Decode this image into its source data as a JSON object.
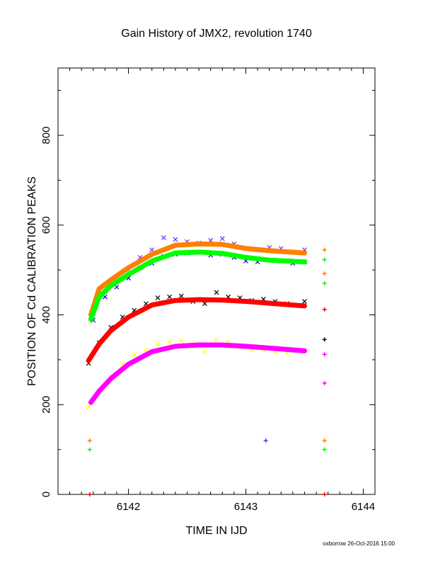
{
  "chart_data": {
    "type": "scatter",
    "title": "Gain History of JMX2, revolution 1740",
    "xlabel": "TIME IN IJD",
    "ylabel": "POSITION OF Cd CALIBRATION PEAKS",
    "xlim": [
      6141.4,
      6144.1
    ],
    "ylim": [
      0,
      950
    ],
    "xticks": [
      "6142",
      "6143",
      "6144"
    ],
    "yticks": [
      "0",
      "200",
      "400",
      "600",
      "800"
    ],
    "grid": false,
    "footer": "oxborrow 26-Oct-2016 15:00",
    "colors": {
      "orange": "#ff8000",
      "green": "#00ff00",
      "red": "#ff0000",
      "magenta": "#ff00ff",
      "purple": "#6633ff",
      "blue": "#0000cc",
      "black": "#000000",
      "yellow": "#ffff00"
    },
    "fitted_series": [
      {
        "color": "orange",
        "x": [
          6141.68,
          6141.75,
          6141.85,
          6142.0,
          6142.2,
          6142.4,
          6142.6,
          6142.8,
          6143.0,
          6143.2,
          6143.5
        ],
        "y": [
          400,
          458,
          478,
          505,
          535,
          555,
          558,
          557,
          548,
          543,
          538
        ]
      },
      {
        "color": "green",
        "x": [
          6141.68,
          6141.75,
          6141.85,
          6142.0,
          6142.2,
          6142.4,
          6142.6,
          6142.8,
          6143.0,
          6143.2,
          6143.5
        ],
        "y": [
          390,
          440,
          465,
          490,
          520,
          538,
          540,
          537,
          528,
          522,
          518
        ]
      },
      {
        "color": "red",
        "x": [
          6141.66,
          6141.75,
          6141.85,
          6142.0,
          6142.2,
          6142.4,
          6142.6,
          6142.8,
          6143.0,
          6143.2,
          6143.5
        ],
        "y": [
          298,
          335,
          365,
          395,
          422,
          432,
          434,
          433,
          430,
          426,
          420
        ]
      },
      {
        "color": "magenta",
        "x": [
          6141.68,
          6141.75,
          6141.85,
          6142.0,
          6142.2,
          6142.4,
          6142.6,
          6142.8,
          6143.0,
          6143.2,
          6143.5
        ],
        "y": [
          205,
          230,
          258,
          290,
          318,
          330,
          333,
          333,
          330,
          326,
          320
        ]
      }
    ],
    "scatter_series": [
      {
        "color": "purple",
        "x": [
          6141.7,
          6141.8,
          6141.9,
          6142.0,
          6142.1,
          6142.2,
          6142.3,
          6142.4,
          6142.5,
          6142.6,
          6142.7,
          6142.8,
          6142.9,
          6143.0,
          6143.1,
          6143.2,
          6143.3,
          6143.4,
          6143.5
        ],
        "y": [
          405,
          452,
          475,
          500,
          528,
          545,
          572,
          568,
          563,
          560,
          566,
          570,
          558,
          548,
          545,
          550,
          548,
          540,
          545
        ]
      },
      {
        "color": "blue",
        "x": [
          6141.7,
          6141.8,
          6141.9,
          6142.0,
          6142.1,
          6142.2,
          6142.3,
          6142.4,
          6142.5,
          6142.6,
          6142.7,
          6142.8,
          6142.9,
          6143.0,
          6143.1,
          6143.2,
          6143.3,
          6143.4,
          6143.5
        ],
        "y": [
          388,
          440,
          462,
          482,
          505,
          515,
          530,
          535,
          538,
          540,
          533,
          535,
          528,
          520,
          518,
          522,
          520,
          515,
          518
        ]
      },
      {
        "color": "black",
        "x": [
          6141.66,
          6141.75,
          6141.85,
          6141.95,
          6142.05,
          6142.15,
          6142.25,
          6142.35,
          6142.45,
          6142.55,
          6142.65,
          6142.75,
          6142.85,
          6142.95,
          6143.05,
          6143.15,
          6143.25,
          6143.35,
          6143.5
        ],
        "y": [
          292,
          338,
          372,
          395,
          410,
          425,
          438,
          440,
          442,
          430,
          425,
          450,
          440,
          438,
          432,
          435,
          430,
          425,
          430
        ]
      },
      {
        "color": "yellow",
        "x": [
          6141.66,
          6141.75,
          6141.85,
          6141.95,
          6142.05,
          6142.15,
          6142.25,
          6142.35,
          6142.45,
          6142.55,
          6142.65,
          6142.75,
          6142.85,
          6142.95,
          6143.05,
          6143.15,
          6143.25,
          6143.35,
          6143.5
        ],
        "y": [
          195,
          232,
          262,
          290,
          312,
          322,
          335,
          340,
          342,
          335,
          318,
          345,
          340,
          328,
          322,
          322,
          318,
          316,
          318
        ]
      }
    ],
    "isolated_points": [
      {
        "color": "orange",
        "x": 6141.67,
        "y": 120
      },
      {
        "color": "green",
        "x": 6141.67,
        "y": 100
      },
      {
        "color": "red",
        "x": 6141.67,
        "y": 0
      },
      {
        "color": "purple",
        "x": 6143.17,
        "y": 120
      },
      {
        "color": "orange",
        "x": 6143.67,
        "y": 545
      },
      {
        "color": "green",
        "x": 6143.67,
        "y": 523
      },
      {
        "color": "orange",
        "x": 6143.67,
        "y": 492
      },
      {
        "color": "green",
        "x": 6143.67,
        "y": 470
      },
      {
        "color": "red",
        "x": 6143.67,
        "y": 412
      },
      {
        "color": "black",
        "x": 6143.67,
        "y": 345
      },
      {
        "color": "magenta",
        "x": 6143.67,
        "y": 312
      },
      {
        "color": "magenta",
        "x": 6143.67,
        "y": 248
      },
      {
        "color": "orange",
        "x": 6143.67,
        "y": 120
      },
      {
        "color": "green",
        "x": 6143.67,
        "y": 100
      },
      {
        "color": "red",
        "x": 6143.67,
        "y": 0
      }
    ]
  }
}
